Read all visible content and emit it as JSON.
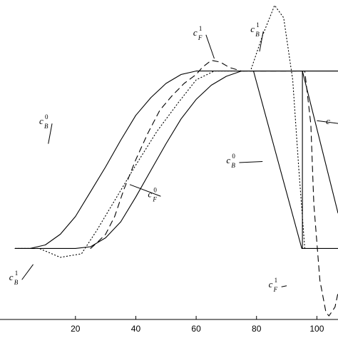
{
  "chart_data": {
    "type": "line",
    "title": "",
    "xlabel": "",
    "ylabel": "",
    "xlim": [
      -5,
      107
    ],
    "ylim": [
      -0.4,
      1.4
    ],
    "x_ticks": [
      {
        "value": 20,
        "label": "20"
      },
      {
        "value": 40,
        "label": "40"
      },
      {
        "value": 60,
        "label": "60"
      },
      {
        "value": 80,
        "label": "80"
      },
      {
        "value": 100,
        "label": "100"
      }
    ],
    "grid": false,
    "series": [
      {
        "line_style": "solid",
        "x": [
          0,
          5,
          10,
          15,
          20,
          25,
          30,
          35,
          40,
          45,
          50,
          55,
          60,
          62,
          70,
          80,
          95,
          100,
          107
        ],
        "y": [
          0,
          0,
          0.02,
          0.08,
          0.18,
          0.32,
          0.46,
          0.61,
          0.75,
          0.85,
          0.93,
          0.98,
          1.0,
          1.0,
          1.0,
          1.0,
          1.0,
          1.0,
          1.0
        ]
      },
      {
        "line_style": "solid",
        "x": [
          0,
          10,
          20,
          25,
          30,
          35,
          40,
          45,
          50,
          55,
          60,
          65,
          70,
          75,
          78,
          80,
          95,
          107
        ],
        "y": [
          0,
          0,
          0,
          0.01,
          0.06,
          0.15,
          0.29,
          0.44,
          0.59,
          0.73,
          0.84,
          0.92,
          0.97,
          1.0,
          1.0,
          1.0,
          1.0,
          1.0
        ]
      },
      {
        "line_style": "solid",
        "x": [
          79,
          95,
          96,
          107
        ],
        "y": [
          1.0,
          0.0,
          0.0,
          0.0
        ]
      },
      {
        "line_style": "solid",
        "x": [
          95.2,
          95.2
        ],
        "y": [
          0.0,
          1.0
        ]
      },
      {
        "line_style": "solid",
        "x": [
          95.2,
          107
        ],
        "y": [
          1.0,
          0.2
        ]
      },
      {
        "line_style": "dotted",
        "x": [
          0,
          8,
          15,
          22,
          27,
          33,
          40,
          47,
          54,
          60,
          66,
          72,
          78,
          82,
          86,
          89,
          92,
          94,
          96
        ],
        "y": [
          0,
          0,
          -0.05,
          -0.03,
          0.1,
          0.27,
          0.47,
          0.66,
          0.82,
          0.95,
          1.0,
          1.0,
          1.0,
          1.2,
          1.37,
          1.3,
          0.95,
          0.45,
          0.0
        ]
      },
      {
        "line_style": "dashed",
        "x": [
          25,
          27,
          30,
          33,
          36,
          40,
          44,
          48,
          52,
          56,
          60,
          62,
          65,
          68,
          71,
          75,
          77,
          96,
          98,
          99,
          101,
          103,
          104,
          106,
          107
        ],
        "y": [
          0,
          0.03,
          0.08,
          0.18,
          0.33,
          0.5,
          0.65,
          0.78,
          0.86,
          0.93,
          0.98,
          1.02,
          1.06,
          1.05,
          1.02,
          1.0,
          1.0,
          1.0,
          0.7,
          0.25,
          -0.18,
          -0.36,
          -0.38,
          -0.33,
          -0.25
        ]
      }
    ],
    "annotations": [
      {
        "name": "c",
        "sub": "B",
        "sup": "0",
        "at": [
          8,
          0.7
        ],
        "line_to": [
          11,
          0.59
        ]
      },
      {
        "name": "c",
        "sub": "F",
        "sup": "1",
        "at": [
          59,
          1.2
        ],
        "line_to": [
          66,
          1.07
        ]
      },
      {
        "name": "c",
        "sub": "B",
        "sup": "1",
        "at": [
          78,
          1.22
        ],
        "line_to": [
          81,
          1.11
        ]
      },
      {
        "name": "c",
        "sub": "F",
        "sup": "0",
        "at": [
          44,
          0.29
        ],
        "line_to": [
          38,
          0.36
        ]
      },
      {
        "name": "c",
        "sub": "B",
        "sup": "0",
        "at": [
          70,
          0.48
        ],
        "line_to": [
          82,
          0.49
        ]
      },
      {
        "name": "c",
        "sub": "B",
        "sup": "1",
        "at": [
          -2,
          -0.18
        ],
        "line_to": [
          6,
          -0.09
        ]
      },
      {
        "name": "c",
        "sub": "F",
        "sup": "1",
        "at": [
          84,
          -0.22
        ],
        "line_to": [
          90,
          -0.21
        ]
      },
      {
        "name": "c",
        "sub": "",
        "sup": "",
        "at": [
          103,
          0.7
        ],
        "line_to": [
          100,
          0.72
        ]
      }
    ]
  }
}
